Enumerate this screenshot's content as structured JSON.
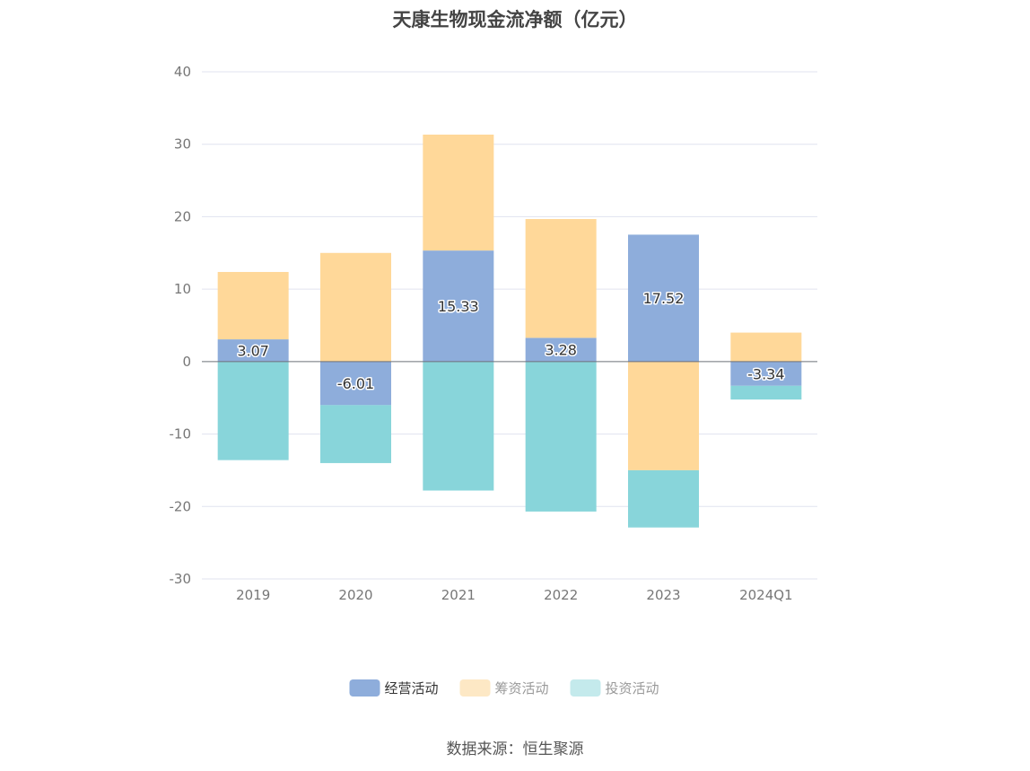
{
  "chart_data": {
    "type": "bar",
    "stacked": true,
    "title": "天康生物现金流净额（亿元）",
    "source": "数据来源：恒生聚源",
    "categories": [
      "2019",
      "2020",
      "2021",
      "2022",
      "2023",
      "2024Q1"
    ],
    "ylim": [
      -30,
      40
    ],
    "yticks": [
      40,
      30,
      20,
      10,
      0,
      -10,
      -20,
      -30
    ],
    "series": [
      {
        "name": "经营活动",
        "color": "#8eaddb",
        "values": [
          3.07,
          -6.01,
          15.33,
          3.28,
          17.52,
          -3.34
        ],
        "labels": [
          "3.07",
          "-6.01",
          "15.33",
          "3.28",
          "17.52",
          "-3.34"
        ]
      },
      {
        "name": "筹资活动",
        "color": "#ffd899",
        "values": [
          9.3,
          15.0,
          16.0,
          16.4,
          -15.0,
          4.0
        ]
      },
      {
        "name": "投资活动",
        "color": "#88d5da",
        "values": [
          -13.6,
          -8.0,
          -17.8,
          -20.7,
          -7.9,
          -1.9
        ]
      }
    ],
    "legend": [
      {
        "name": "经营活动",
        "color": "#8eaddb",
        "active": true
      },
      {
        "name": "筹资活动",
        "color": "#fde8c5",
        "active": false
      },
      {
        "name": "投资活动",
        "color": "#c4eaec",
        "active": false
      }
    ]
  }
}
